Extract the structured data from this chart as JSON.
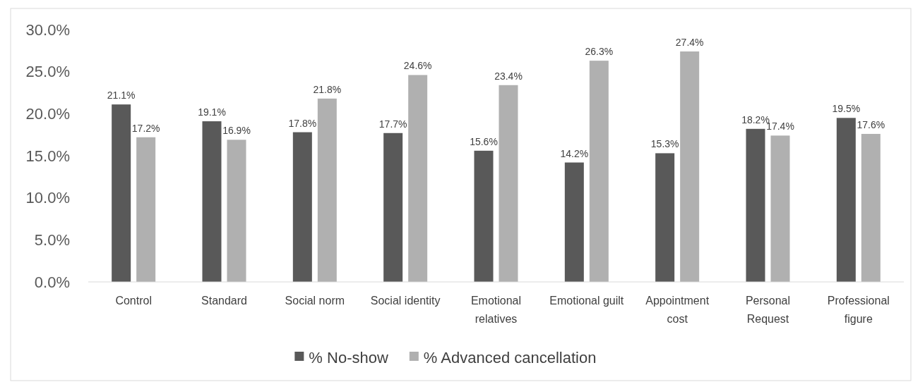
{
  "chart_data": {
    "type": "bar",
    "categories": [
      "Control",
      "Standard",
      "Social norm",
      "Social identity",
      "Emotional relatives",
      "Emotional guilt",
      "Appointment cost",
      "Personal Request",
      "Professional figure"
    ],
    "series": [
      {
        "name": "% No-show",
        "color": "#595959",
        "values": [
          21.1,
          19.1,
          17.8,
          17.7,
          15.6,
          14.2,
          15.3,
          18.2,
          19.5
        ],
        "value_labels": [
          "21.1%",
          "19.1%",
          "17.8%",
          "17.7%",
          "15.6%",
          "14.2%",
          "15.3%",
          "18.2%",
          "19.5%"
        ]
      },
      {
        "name": "% Advanced cancellation",
        "color": "#b0b0b0",
        "values": [
          17.2,
          16.9,
          21.8,
          24.6,
          23.4,
          26.3,
          27.4,
          17.4,
          17.6
        ],
        "value_labels": [
          "17.2%",
          "16.9%",
          "21.8%",
          "24.6%",
          "23.4%",
          "26.3%",
          "27.4%",
          "17.4%",
          "17.6%"
        ]
      }
    ],
    "ylim": [
      0,
      30
    ],
    "yticks": [
      {
        "value": 0,
        "label": "0.0%"
      },
      {
        "value": 5,
        "label": "5.0%"
      },
      {
        "value": 10,
        "label": "10.0%"
      },
      {
        "value": 15,
        "label": "15.0%"
      },
      {
        "value": 20,
        "label": "20.0%"
      },
      {
        "value": 25,
        "label": "25.0%"
      },
      {
        "value": 30,
        "label": "30.0%"
      }
    ],
    "legend": "bottom",
    "grid": false
  }
}
